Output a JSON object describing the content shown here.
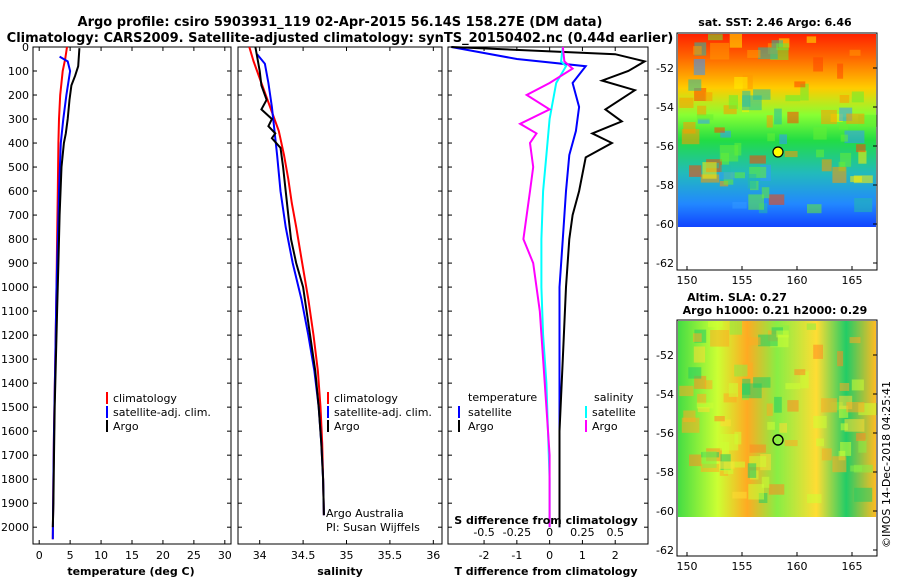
{
  "header": {
    "title_line1": "Argo profile: csiro 5903931_119 02-Apr-2015 56.14S 158.27E (DM data)",
    "title_line2": "Climatology: CARS2009. Satellite-adjusted climatology: synTS_20150402.nc (0.44d earlier)"
  },
  "credits": {
    "argo_australia": "Argo Australia",
    "pi": "PI: Susan Wijffels",
    "imos": "©IMOS 14-Dec-2018 04:25:41"
  },
  "colors": {
    "red": "#ff0000",
    "blue": "#0000ff",
    "black": "#000000",
    "cyan": "#00ffff",
    "magenta": "#ff00ff"
  },
  "chart_data": [
    {
      "type": "line",
      "panel": "temperature",
      "xlabel": "temperature (deg C)",
      "ylim": [
        2070,
        0
      ],
      "xlim": [
        -1,
        31
      ],
      "xticks": [
        "0",
        "5",
        "10",
        "15",
        "20",
        "25",
        "30"
      ],
      "yticks": [
        "0",
        "100",
        "200",
        "300",
        "400",
        "500",
        "600",
        "700",
        "800",
        "900",
        "1000",
        "1100",
        "1200",
        "1300",
        "1400",
        "1500",
        "1600",
        "1700",
        "1800",
        "1900",
        "2000"
      ],
      "legend": [
        "climatology",
        "satellite-adj. clim.",
        "Argo"
      ],
      "series": [
        {
          "name": "climatology",
          "color": "red",
          "points": [
            [
              4.5,
              0
            ],
            [
              4.2,
              50
            ],
            [
              3.8,
              100
            ],
            [
              3.4,
              200
            ],
            [
              3.2,
              300
            ],
            [
              3.1,
              400
            ],
            [
              3.0,
              600
            ],
            [
              2.9,
              800
            ],
            [
              2.8,
              1000
            ],
            [
              2.6,
              1300
            ],
            [
              2.4,
              1600
            ],
            [
              2.3,
              1800
            ],
            [
              2.2,
              2050
            ]
          ]
        },
        {
          "name": "satellite-adj. clim.",
          "color": "blue",
          "points": [
            [
              3.3,
              40
            ],
            [
              4.6,
              60
            ],
            [
              5.0,
              100
            ],
            [
              4.4,
              200
            ],
            [
              3.9,
              300
            ],
            [
              3.5,
              400
            ],
            [
              3.2,
              600
            ],
            [
              3.0,
              800
            ],
            [
              2.8,
              1000
            ],
            [
              2.6,
              1300
            ],
            [
              2.4,
              1600
            ],
            [
              2.3,
              1800
            ],
            [
              2.2,
              2050
            ]
          ]
        },
        {
          "name": "Argo",
          "color": "black",
          "points": [
            [
              6.5,
              5
            ],
            [
              6.3,
              80
            ],
            [
              5.8,
              120
            ],
            [
              5.2,
              160
            ],
            [
              4.9,
              220
            ],
            [
              4.6,
              300
            ],
            [
              4.3,
              360
            ],
            [
              4.0,
              400
            ],
            [
              3.6,
              500
            ],
            [
              3.3,
              700
            ],
            [
              3.1,
              900
            ],
            [
              2.9,
              1100
            ],
            [
              2.7,
              1300
            ],
            [
              2.5,
              1500
            ],
            [
              2.4,
              1700
            ],
            [
              2.3,
              1900
            ],
            [
              2.2,
              2000
            ]
          ]
        }
      ]
    },
    {
      "type": "line",
      "panel": "salinity",
      "xlabel": "salinity",
      "ylim": [
        2070,
        0
      ],
      "xlim": [
        33.75,
        36.1
      ],
      "xticks": [
        "34",
        "34.5",
        "35",
        "35.5",
        "36"
      ],
      "legend": [
        "climatology",
        "satellite-adj. clim.",
        "Argo"
      ],
      "series": [
        {
          "name": "climatology",
          "color": "red",
          "points": [
            [
              33.88,
              0
            ],
            [
              33.93,
              60
            ],
            [
              34.02,
              150
            ],
            [
              34.12,
              250
            ],
            [
              34.22,
              350
            ],
            [
              34.28,
              450
            ],
            [
              34.33,
              550
            ],
            [
              34.37,
              650
            ],
            [
              34.42,
              750
            ],
            [
              34.49,
              900
            ],
            [
              34.56,
              1050
            ],
            [
              34.62,
              1200
            ],
            [
              34.67,
              1350
            ],
            [
              34.7,
              1500
            ],
            [
              34.72,
              1650
            ],
            [
              34.73,
              1800
            ],
            [
              34.74,
              1950
            ]
          ]
        },
        {
          "name": "satellite-adj. clim.",
          "color": "blue",
          "points": [
            [
              33.97,
              30
            ],
            [
              34.06,
              70
            ],
            [
              34.1,
              150
            ],
            [
              34.14,
              250
            ],
            [
              34.17,
              350
            ],
            [
              34.2,
              450
            ],
            [
              34.24,
              600
            ],
            [
              34.3,
              750
            ],
            [
              34.38,
              900
            ],
            [
              34.48,
              1050
            ],
            [
              34.56,
              1200
            ],
            [
              34.63,
              1350
            ],
            [
              34.68,
              1500
            ],
            [
              34.71,
              1650
            ],
            [
              34.73,
              1800
            ],
            [
              34.74,
              1950
            ]
          ]
        },
        {
          "name": "Argo",
          "color": "black",
          "points": [
            [
              33.95,
              0
            ],
            [
              34.0,
              100
            ],
            [
              34.02,
              160
            ],
            [
              34.08,
              220
            ],
            [
              34.02,
              260
            ],
            [
              34.14,
              300
            ],
            [
              34.1,
              330
            ],
            [
              34.18,
              360
            ],
            [
              34.14,
              380
            ],
            [
              34.24,
              420
            ],
            [
              34.27,
              500
            ],
            [
              34.3,
              600
            ],
            [
              34.33,
              700
            ],
            [
              34.36,
              800
            ],
            [
              34.42,
              900
            ],
            [
              34.5,
              1000
            ],
            [
              34.58,
              1200
            ],
            [
              34.64,
              1350
            ],
            [
              34.68,
              1500
            ],
            [
              34.71,
              1650
            ],
            [
              34.73,
              1800
            ],
            [
              34.74,
              1950
            ]
          ]
        }
      ]
    },
    {
      "type": "line",
      "panel": "difference",
      "xlabel": "T difference from climatology",
      "xlabel2": "S difference from climatology",
      "ylim": [
        2070,
        0
      ],
      "xlim": [
        -3.1,
        3.0
      ],
      "xticks": [
        "-2",
        "-1",
        "0",
        "1",
        "2"
      ],
      "xticks2": [
        "-0.5",
        "-0.25",
        "0",
        "0.25",
        "0.5"
      ],
      "legend_temperature": {
        "header": "temperature",
        "items": [
          "satellite",
          "Argo"
        ]
      },
      "legend_salinity": {
        "header": "salinity",
        "items": [
          "satellite",
          "Argo"
        ]
      },
      "series": [
        {
          "name": "satellite",
          "group": "temperature",
          "color": "blue",
          "points": [
            [
              -3.0,
              0
            ],
            [
              -1.0,
              50
            ],
            [
              1.1,
              80
            ],
            [
              0.7,
              150
            ],
            [
              0.9,
              250
            ],
            [
              0.8,
              350
            ],
            [
              0.6,
              450
            ],
            [
              0.5,
              600
            ],
            [
              0.4,
              800
            ],
            [
              0.3,
              1000
            ],
            [
              0.3,
              1300
            ],
            [
              0.3,
              1600
            ],
            [
              0.3,
              2000
            ]
          ]
        },
        {
          "name": "Argo",
          "group": "temperature",
          "color": "black",
          "points": [
            [
              -3.0,
              0
            ],
            [
              2.0,
              30
            ],
            [
              2.9,
              60
            ],
            [
              2.4,
              100
            ],
            [
              1.6,
              140
            ],
            [
              2.6,
              180
            ],
            [
              1.7,
              260
            ],
            [
              2.2,
              310
            ],
            [
              1.3,
              360
            ],
            [
              1.9,
              400
            ],
            [
              1.1,
              460
            ],
            [
              0.9,
              600
            ],
            [
              0.7,
              700
            ],
            [
              0.6,
              800
            ],
            [
              0.5,
              1000
            ],
            [
              0.4,
              1300
            ],
            [
              0.3,
              1600
            ],
            [
              0.3,
              2000
            ]
          ]
        },
        {
          "name": "satellite",
          "group": "salinity",
          "color": "cyan",
          "points": [
            [
              0.4,
              0
            ],
            [
              0.35,
              60
            ],
            [
              0.5,
              80
            ],
            [
              0.2,
              150
            ],
            [
              0.0,
              300
            ],
            [
              -0.1,
              450
            ],
            [
              -0.2,
              600
            ],
            [
              -0.25,
              800
            ],
            [
              -0.25,
              1000
            ],
            [
              -0.2,
              1200
            ],
            [
              -0.1,
              1400
            ],
            [
              -0.05,
              1600
            ],
            [
              0.0,
              1800
            ],
            [
              0.0,
              2000
            ]
          ]
        },
        {
          "name": "Argo",
          "group": "salinity",
          "color": "magenta",
          "points": [
            [
              0.4,
              0
            ],
            [
              0.45,
              60
            ],
            [
              0.7,
              90
            ],
            [
              0.0,
              150
            ],
            [
              -0.7,
              200
            ],
            [
              0.0,
              260
            ],
            [
              -0.9,
              320
            ],
            [
              -0.4,
              360
            ],
            [
              -0.6,
              400
            ],
            [
              -0.5,
              500
            ],
            [
              -0.6,
              600
            ],
            [
              -0.7,
              700
            ],
            [
              -0.8,
              800
            ],
            [
              -0.5,
              900
            ],
            [
              -0.3,
              1100
            ],
            [
              -0.2,
              1300
            ],
            [
              -0.1,
              1500
            ],
            [
              0.0,
              1700
            ],
            [
              0.0,
              2000
            ]
          ]
        }
      ]
    }
  ],
  "maps": [
    {
      "title": "sat. SST: 2.46 Argo: 6.46",
      "yticks": [
        "-52",
        "-54",
        "-56",
        "-58",
        "-60",
        "-62"
      ],
      "xticks": [
        "150",
        "155",
        "160",
        "165"
      ],
      "marker": {
        "lon": 158.27,
        "lat": -56.14
      }
    },
    {
      "title_line1": "Altim. SLA: 0.27",
      "title_line2": "Argo h1000: 0.21 h2000: 0.29",
      "yticks": [
        "-52",
        "-54",
        "-56",
        "-58",
        "-60",
        "-62"
      ],
      "xticks": [
        "150",
        "155",
        "160",
        "165"
      ],
      "marker": {
        "lon": 158.27,
        "lat": -56.14
      }
    }
  ]
}
